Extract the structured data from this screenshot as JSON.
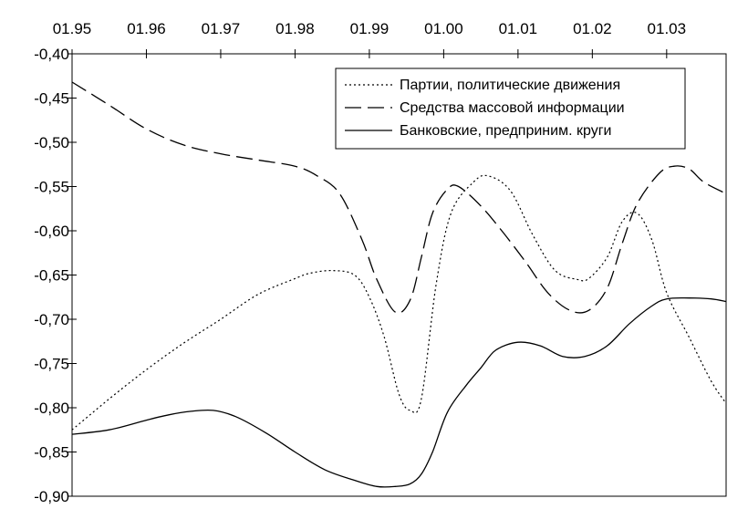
{
  "chart_data": {
    "type": "line",
    "title": "",
    "xlabel": "",
    "ylabel": "",
    "x_axis_position": "top",
    "x_tick_labels": [
      "01.95",
      "01.96",
      "01.97",
      "01.98",
      "01.99",
      "01.00",
      "01.01",
      "01.02",
      "01.03"
    ],
    "xlim": [
      0,
      8.8
    ],
    "ylim": [
      -0.9,
      -0.4
    ],
    "y_ticks": [
      -0.4,
      -0.45,
      -0.5,
      -0.55,
      -0.6,
      -0.65,
      -0.7,
      -0.75,
      -0.8,
      -0.85,
      -0.9
    ],
    "y_tick_labels": [
      "-0,40",
      "-0,45",
      "-0,50",
      "-0,55",
      "-0,60",
      "-0,65",
      "-0,70",
      "-0,75",
      "-0,80",
      "-0,85",
      "-0,90"
    ],
    "grid": false,
    "legend_position": "top-right",
    "series": [
      {
        "name": "Партии, политические движения",
        "style": "dotted",
        "x": [
          0,
          0.5,
          1,
          1.5,
          2,
          2.5,
          3,
          3.2,
          3.5,
          3.8,
          4.0,
          4.2,
          4.4,
          4.55,
          4.7,
          4.9,
          5.1,
          5.4,
          5.6,
          5.9,
          6.2,
          6.5,
          6.8,
          6.95,
          7.2,
          7.4,
          7.6,
          7.8,
          8.0,
          8.3,
          8.6,
          8.8
        ],
        "y": [
          -0.825,
          -0.79,
          -0.757,
          -0.727,
          -0.7,
          -0.672,
          -0.654,
          -0.648,
          -0.645,
          -0.65,
          -0.675,
          -0.72,
          -0.785,
          -0.803,
          -0.79,
          -0.66,
          -0.58,
          -0.545,
          -0.538,
          -0.555,
          -0.605,
          -0.645,
          -0.655,
          -0.654,
          -0.63,
          -0.59,
          -0.58,
          -0.61,
          -0.67,
          -0.72,
          -0.77,
          -0.795
        ]
      },
      {
        "name": "Средства массовой информации",
        "style": "dashed",
        "x": [
          0,
          0.5,
          1,
          1.5,
          2,
          2.5,
          3,
          3.3,
          3.6,
          3.9,
          4.1,
          4.35,
          4.55,
          4.7,
          4.85,
          5.05,
          5.2,
          5.5,
          5.8,
          6.1,
          6.4,
          6.7,
          6.95,
          7.2,
          7.4,
          7.6,
          7.9,
          8.1,
          8.3,
          8.5,
          8.8
        ],
        "y": [
          -0.432,
          -0.458,
          -0.485,
          -0.503,
          -0.513,
          -0.52,
          -0.527,
          -0.538,
          -0.558,
          -0.61,
          -0.655,
          -0.692,
          -0.678,
          -0.63,
          -0.58,
          -0.553,
          -0.55,
          -0.572,
          -0.602,
          -0.635,
          -0.67,
          -0.69,
          -0.69,
          -0.665,
          -0.615,
          -0.57,
          -0.535,
          -0.527,
          -0.53,
          -0.545,
          -0.558
        ]
      },
      {
        "name": "Банковские, предприним. круги",
        "style": "solid",
        "x": [
          0,
          0.5,
          1,
          1.3,
          1.6,
          1.9,
          2.2,
          2.6,
          3.0,
          3.4,
          3.8,
          4.1,
          4.35,
          4.55,
          4.7,
          4.85,
          5.05,
          5.3,
          5.5,
          5.7,
          6.0,
          6.3,
          6.6,
          6.9,
          7.2,
          7.5,
          7.8,
          8.0,
          8.3,
          8.6,
          8.8
        ],
        "y": [
          -0.83,
          -0.825,
          -0.814,
          -0.808,
          -0.804,
          -0.803,
          -0.81,
          -0.828,
          -0.85,
          -0.87,
          -0.882,
          -0.889,
          -0.889,
          -0.886,
          -0.875,
          -0.85,
          -0.805,
          -0.775,
          -0.755,
          -0.735,
          -0.726,
          -0.73,
          -0.742,
          -0.742,
          -0.73,
          -0.705,
          -0.685,
          -0.677,
          -0.676,
          -0.677,
          -0.68
        ]
      }
    ]
  }
}
